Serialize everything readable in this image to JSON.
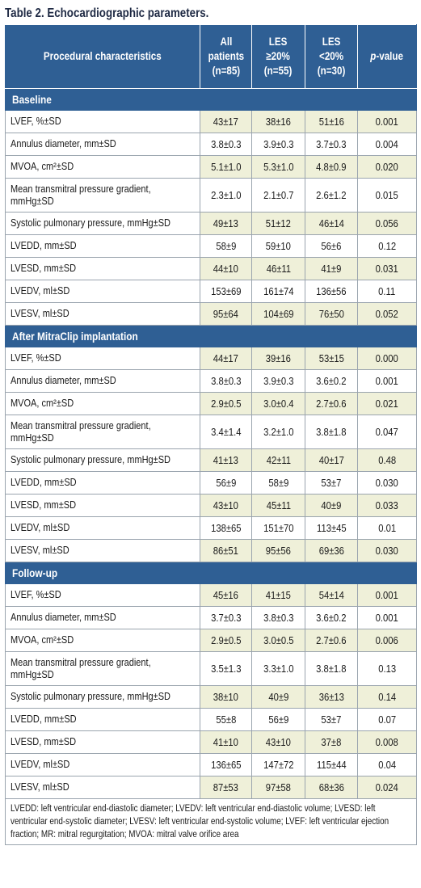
{
  "caption": "Table 2. Echocardiographic parameters.",
  "headers": {
    "characteristic": "Procedural characteristics",
    "all": [
      "All",
      "patients",
      "(n=85)"
    ],
    "les_ge": [
      "LES",
      "≥20%",
      "(n=55)"
    ],
    "les_lt": [
      "LES",
      "<20%",
      "(n=30)"
    ],
    "p_italic": "p",
    "p_rest": "-value"
  },
  "sections": [
    {
      "title": "Baseline",
      "rows": [
        {
          "label": "LVEF, %±SD",
          "all": "43±17",
          "ge": "38±16",
          "lt": "51±16",
          "p": "0.001"
        },
        {
          "label": "Annulus diameter, mm±SD",
          "all": "3.8±0.3",
          "ge": "3.9±0.3",
          "lt": "3.7±0.3",
          "p": "0.004"
        },
        {
          "label": "MVOA, cm²±SD",
          "all": "5.1±1.0",
          "ge": "5.3±1.0",
          "lt": "4.8±0.9",
          "p": "0.020"
        },
        {
          "label": "Mean transmitral pressure gradient, mmHg±SD",
          "all": "2.3±1.0",
          "ge": "2.1±0.7",
          "lt": "2.6±1.2",
          "p": "0.015"
        },
        {
          "label": "Systolic pulmonary pressure, mmHg±SD",
          "all": "49±13",
          "ge": "51±12",
          "lt": "46±14",
          "p": "0.056"
        },
        {
          "label": "LVEDD, mm±SD",
          "all": "58±9",
          "ge": "59±10",
          "lt": "56±6",
          "p": "0.12"
        },
        {
          "label": "LVESD, mm±SD",
          "all": "44±10",
          "ge": "46±11",
          "lt": "41±9",
          "p": "0.031"
        },
        {
          "label": "LVEDV, ml±SD",
          "all": "153±69",
          "ge": "161±74",
          "lt": "136±56",
          "p": "0.11"
        },
        {
          "label": "LVESV, ml±SD",
          "all": "95±64",
          "ge": "104±69",
          "lt": "76±50",
          "p": "0.052"
        }
      ]
    },
    {
      "title": "After MitraClip implantation",
      "rows": [
        {
          "label": "LVEF, %±SD",
          "all": "44±17",
          "ge": "39±16",
          "lt": "53±15",
          "p": "0.000"
        },
        {
          "label": "Annulus diameter, mm±SD",
          "all": "3.8±0.3",
          "ge": "3.9±0.3",
          "lt": "3.6±0.2",
          "p": "0.001"
        },
        {
          "label": "MVOA, cm²±SD",
          "all": "2.9±0.5",
          "ge": "3.0±0.4",
          "lt": "2.7±0.6",
          "p": "0.021"
        },
        {
          "label": "Mean transmitral pressure gradient, mmHg±SD",
          "all": "3.4±1.4",
          "ge": "3.2±1.0",
          "lt": "3.8±1.8",
          "p": "0.047"
        },
        {
          "label": "Systolic pulmonary pressure, mmHg±SD",
          "all": "41±13",
          "ge": "42±11",
          "lt": "40±17",
          "p": "0.48"
        },
        {
          "label": "LVEDD, mm±SD",
          "all": "56±9",
          "ge": "58±9",
          "lt": "53±7",
          "p": "0.030"
        },
        {
          "label": "LVESD, mm±SD",
          "all": "43±10",
          "ge": "45±11",
          "lt": "40±9",
          "p": "0.033"
        },
        {
          "label": "LVEDV, ml±SD",
          "all": "138±65",
          "ge": "151±70",
          "lt": "113±45",
          "p": "0.01"
        },
        {
          "label": "LVESV, ml±SD",
          "all": "86±51",
          "ge": "95±56",
          "lt": "69±36",
          "p": "0.030"
        }
      ]
    },
    {
      "title": "Follow-up",
      "rows": [
        {
          "label": "LVEF, %±SD",
          "all": "45±16",
          "ge": "41±15",
          "lt": "54±14",
          "p": "0.001"
        },
        {
          "label": "Annulus diameter, mm±SD",
          "all": "3.7±0.3",
          "ge": "3.8±0.3",
          "lt": "3.6±0.2",
          "p": "0.001"
        },
        {
          "label": "MVOA, cm²±SD",
          "all": "2.9±0.5",
          "ge": "3.0±0.5",
          "lt": "2.7±0.6",
          "p": "0.006"
        },
        {
          "label": "Mean transmitral pressure gradient, mmHg±SD",
          "all": "3.5±1.3",
          "ge": "3.3±1.0",
          "lt": "3.8±1.8",
          "p": "0.13"
        },
        {
          "label": "Systolic pulmonary pressure, mmHg±SD",
          "all": "38±10",
          "ge": "40±9",
          "lt": "36±13",
          "p": "0.14"
        },
        {
          "label": "LVEDD, mm±SD",
          "all": "55±8",
          "ge": "56±9",
          "lt": "53±7",
          "p": "0.07"
        },
        {
          "label": "LVESD, mm±SD",
          "all": "41±10",
          "ge": "43±10",
          "lt": "37±8",
          "p": "0.008"
        },
        {
          "label": "LVEDV, ml±SD",
          "all": "136±65",
          "ge": "147±72",
          "lt": "115±44",
          "p": "0.04"
        },
        {
          "label": "LVESV, ml±SD",
          "all": "87±53",
          "ge": "97±58",
          "lt": "68±36",
          "p": "0.024"
        }
      ]
    }
  ],
  "footnote": "LVEDD: left ventricular end-diastolic diameter; LVEDV: left ventricular end-diastolic volume; LVESD: left ventricular end-systolic diameter; LVESV: left ventricular end-systolic volume; LVEF: left ventricular ejection fraction; MR: mitral regurgitation; MVOA: mitral valve orifice area",
  "colors": {
    "header_blue": "#2f5f94",
    "shade": "#eff0d9",
    "border": "#9aa4ae"
  }
}
